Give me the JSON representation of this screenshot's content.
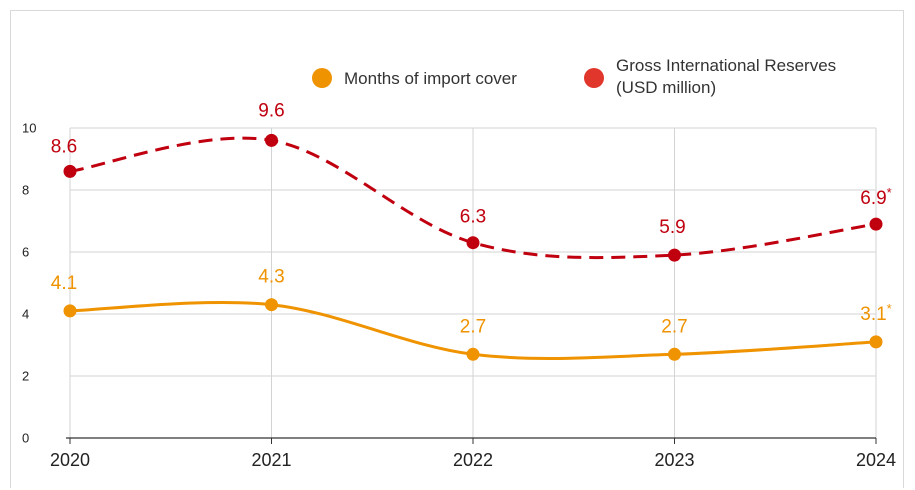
{
  "chart_data": {
    "type": "line",
    "title": "",
    "xlabel": "",
    "ylabel": "",
    "categories": [
      "2020",
      "2021",
      "2022",
      "2023",
      "2024"
    ],
    "ylim": [
      0,
      10
    ],
    "yticks": [
      "0",
      "2",
      "4",
      "6",
      "8",
      "10"
    ],
    "grid": true,
    "legend_position": "top-right",
    "series": [
      {
        "name": "Gross International Reserves (USD million)",
        "legend_lines": [
          "Gross International Reserves",
          "(USD million)"
        ],
        "values": [
          8.6,
          9.6,
          6.3,
          5.9,
          6.9
        ],
        "labels": [
          "8.6",
          "9.6",
          "6.3",
          "5.9",
          "6.9"
        ],
        "label_suffix": [
          "",
          "",
          "",
          "",
          "*"
        ],
        "color": "#c0000f",
        "legend_color": "#e0362b",
        "line_style": "dashed"
      },
      {
        "name": "Months of import cover",
        "legend_lines": [
          "Months of import cover"
        ],
        "values": [
          4.1,
          4.3,
          2.7,
          2.7,
          3.1
        ],
        "labels": [
          "4.1",
          "4.3",
          "2.7",
          "2.7",
          "3.1"
        ],
        "label_suffix": [
          "",
          "",
          "",
          "",
          "*"
        ],
        "color": "#ef9300",
        "legend_color": "#ef9300",
        "line_style": "solid"
      }
    ]
  }
}
